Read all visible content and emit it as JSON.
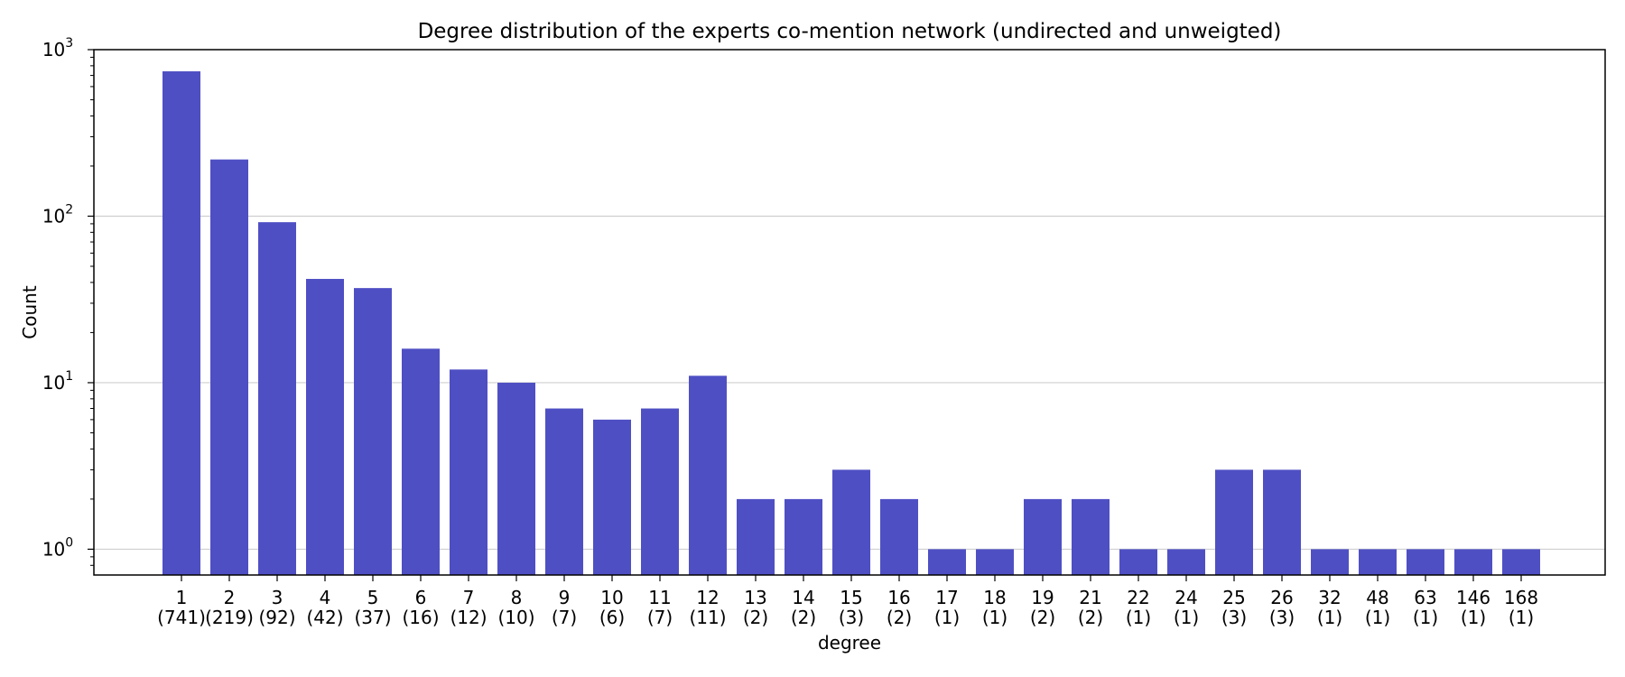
{
  "chart_data": {
    "type": "bar",
    "title": "Degree distribution of the experts co-mention network (undirected and unweigted)",
    "xlabel": "degree",
    "ylabel": "Count",
    "yscale": "log",
    "ylim": [
      0.7,
      1000
    ],
    "grid": "y-major",
    "bar_color": "#4f4fc4",
    "categories": [
      "1",
      "2",
      "3",
      "4",
      "5",
      "6",
      "7",
      "8",
      "9",
      "10",
      "11",
      "12",
      "13",
      "14",
      "15",
      "16",
      "17",
      "18",
      "19",
      "21",
      "22",
      "24",
      "25",
      "26",
      "32",
      "48",
      "63",
      "146",
      "168"
    ],
    "count_labels": [
      "(741)",
      "(219)",
      "(92)",
      "(42)",
      "(37)",
      "(16)",
      "(12)",
      "(10)",
      "(7)",
      "(6)",
      "(7)",
      "(11)",
      "(2)",
      "(2)",
      "(3)",
      "(2)",
      "(1)",
      "(1)",
      "(2)",
      "(2)",
      "(1)",
      "(1)",
      "(3)",
      "(3)",
      "(1)",
      "(1)",
      "(1)",
      "(1)",
      "(1)"
    ],
    "values": [
      741,
      219,
      92,
      42,
      37,
      16,
      12,
      10,
      7,
      6,
      7,
      11,
      2,
      2,
      3,
      2,
      1,
      1,
      2,
      2,
      1,
      1,
      3,
      3,
      1,
      1,
      1,
      1,
      1
    ],
    "yticks": [
      {
        "base": "10",
        "exp": "0",
        "value": 1
      },
      {
        "base": "10",
        "exp": "1",
        "value": 10
      },
      {
        "base": "10",
        "exp": "2",
        "value": 100
      },
      {
        "base": "10",
        "exp": "3",
        "value": 1000
      }
    ]
  }
}
